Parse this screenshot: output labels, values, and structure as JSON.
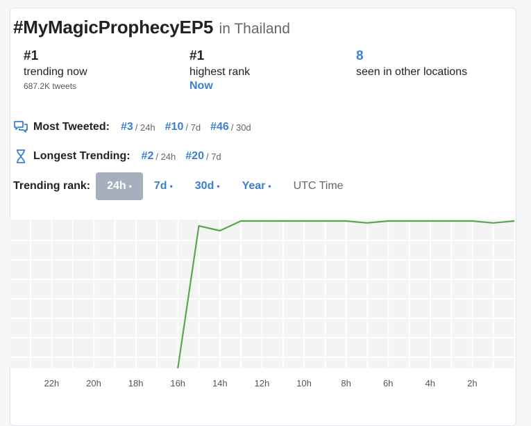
{
  "header": {
    "hashtag": "#MyMagicProphecyEP5",
    "location": "in Thailand"
  },
  "stats": {
    "trending": {
      "value": "#1",
      "label": "trending now",
      "sub": "687.2K tweets"
    },
    "highest": {
      "value": "#1",
      "label": "highest rank",
      "when": "Now"
    },
    "other": {
      "value": "8",
      "label": "seen in other locations"
    }
  },
  "most_tweeted": {
    "label": "Most Tweeted:",
    "items": [
      {
        "rank": "#3",
        "period": "/ 24h"
      },
      {
        "rank": "#10",
        "period": "/ 7d"
      },
      {
        "rank": "#46",
        "period": "/ 30d"
      }
    ]
  },
  "longest_trending": {
    "label": "Longest Trending:",
    "items": [
      {
        "rank": "#2",
        "period": "/ 24h"
      },
      {
        "rank": "#20",
        "period": "/ 7d"
      }
    ]
  },
  "rank_tabs": {
    "label": "Trending rank:",
    "tabs": [
      {
        "label": "24h",
        "dot": "•",
        "active": true
      },
      {
        "label": "7d",
        "dot": "•"
      },
      {
        "label": "30d",
        "dot": "•"
      },
      {
        "label": "Year",
        "dot": "•"
      }
    ],
    "utc": "UTC Time"
  },
  "chart_data": {
    "type": "line",
    "x_ticks": [
      "22h",
      "20h",
      "18h",
      "16h",
      "14h",
      "12h",
      "10h",
      "8h",
      "6h",
      "4h",
      "2h"
    ],
    "y_direction": "rank, #1 at top",
    "series": [
      {
        "color": "#5aa650",
        "hours_ago": [
          16,
          15,
          14,
          13,
          12,
          11,
          10,
          9,
          8,
          7,
          6,
          5,
          4,
          3,
          2,
          1,
          0
        ],
        "rank": [
          50,
          2,
          3,
          1,
          1,
          1,
          1,
          1,
          1,
          1.4,
          1,
          1,
          1,
          1,
          1,
          1.4,
          1
        ]
      }
    ],
    "grid": true
  }
}
